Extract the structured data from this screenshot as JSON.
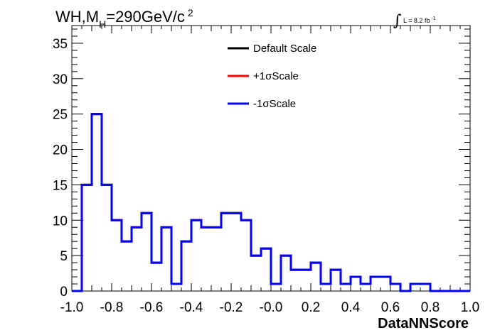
{
  "chart_data": {
    "type": "histogram",
    "title": {
      "prefix": "WH,M",
      "subscript": "H",
      "value": "=290GeV/c",
      "superscript": "2"
    },
    "luminosity": {
      "integral": "∫",
      "label": "L = 8.2 fb",
      "superscript": "-1"
    },
    "xlabel": "DataNNScore",
    "ylabel": "",
    "xlim": [
      -1.0,
      1.0
    ],
    "ylim": [
      0,
      37.5
    ],
    "xticks": [
      -1.0,
      -0.8,
      -0.6,
      -0.4,
      -0.2,
      0.0,
      0.2,
      0.4,
      0.6,
      0.8,
      1.0
    ],
    "xtick_labels": [
      "-1.0",
      "-0.8",
      "-0.6",
      "-0.4",
      "-0.2",
      "-0.0",
      "0.2",
      "0.4",
      "0.6",
      "0.8",
      "1.0"
    ],
    "yticks": [
      0,
      5,
      10,
      15,
      20,
      25,
      30,
      35
    ],
    "ytick_labels": [
      "0",
      "5",
      "10",
      "15",
      "20",
      "25",
      "30",
      "35"
    ],
    "bin_edges": [
      -1.0,
      -0.95,
      -0.9,
      -0.85,
      -0.8,
      -0.75,
      -0.7,
      -0.65,
      -0.6,
      -0.55,
      -0.5,
      -0.45,
      -0.4,
      -0.35,
      -0.3,
      -0.25,
      -0.2,
      -0.15,
      -0.1,
      -0.05,
      0.0,
      0.05,
      0.1,
      0.15,
      0.2,
      0.25,
      0.3,
      0.35,
      0.4,
      0.45,
      0.5,
      0.55,
      0.6,
      0.65,
      0.7,
      0.75,
      0.8,
      0.85,
      0.9,
      0.95,
      1.0
    ],
    "legend_position": "top-center",
    "series": [
      {
        "name": "Default Scale",
        "color": "#000000",
        "values": [
          0,
          15,
          25,
          15,
          10,
          7,
          9,
          11,
          4,
          9,
          1,
          7,
          10,
          9,
          9,
          11,
          11,
          10,
          5,
          6,
          1,
          5,
          3,
          3,
          4,
          1,
          3,
          1,
          2,
          1,
          2,
          2,
          1,
          0,
          1,
          1,
          0,
          0,
          0,
          0
        ]
      },
      {
        "name": "+1σScale",
        "color": "#ff0000",
        "values": [
          0,
          15,
          25,
          15,
          10,
          7,
          9,
          11,
          4,
          9,
          1,
          7,
          10,
          9,
          9,
          11,
          11,
          10,
          5,
          6,
          1,
          5,
          3,
          3,
          4,
          1,
          3,
          1,
          2,
          1,
          2,
          2,
          1,
          0,
          1,
          1,
          0,
          0,
          0,
          0
        ]
      },
      {
        "name": "-1σScale",
        "color": "#0000ff",
        "values": [
          0,
          15,
          25,
          15,
          10,
          7,
          9,
          11,
          4,
          9,
          1,
          7,
          10,
          9,
          9,
          11,
          11,
          10,
          5,
          6,
          1,
          5,
          3,
          3,
          4,
          1,
          3,
          1,
          2,
          1,
          2,
          2,
          1,
          0,
          1,
          1,
          0,
          0,
          0,
          0
        ]
      }
    ]
  }
}
